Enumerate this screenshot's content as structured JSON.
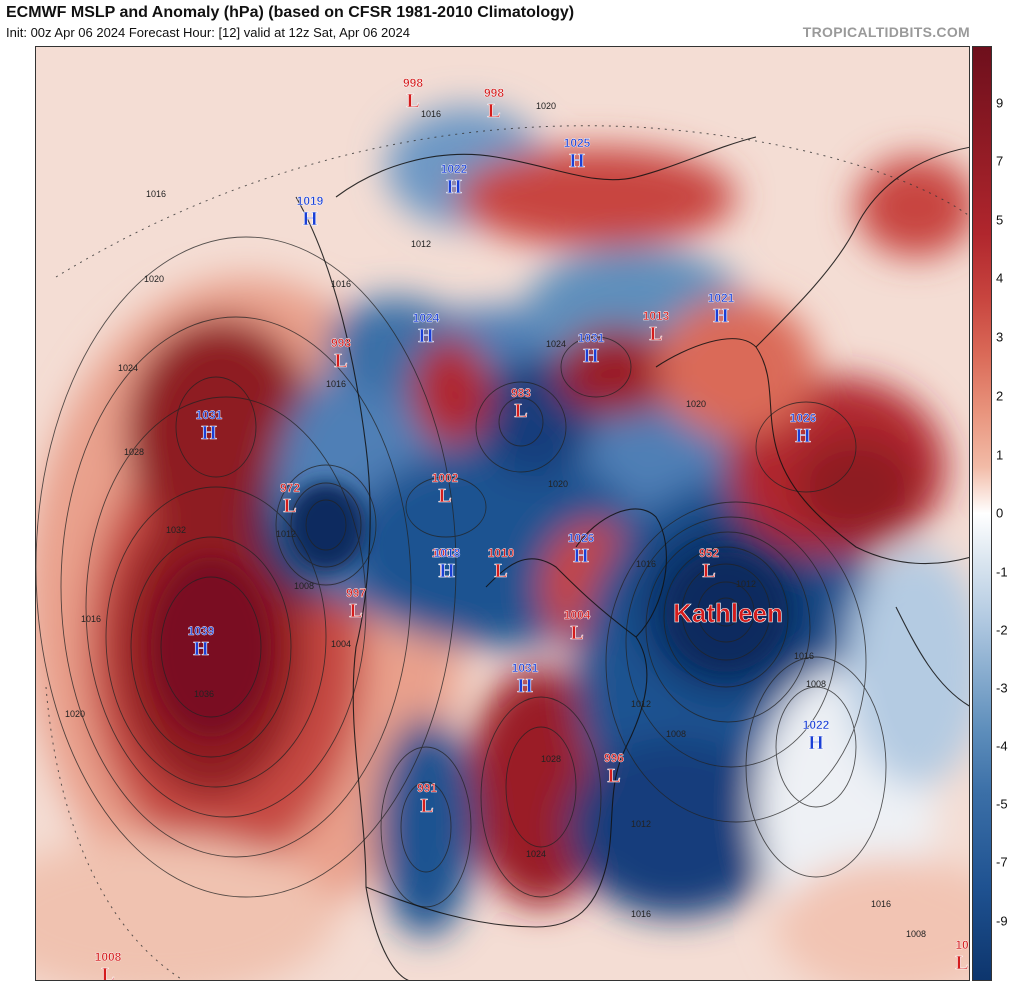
{
  "header": {
    "title": "ECMWF MSLP and Anomaly (hPa) (based on CFSR 1981-2010 Climatology)",
    "subtitle": "Init: 00z Apr 06 2024   Forecast Hour: [12]   valid at 12z Sat, Apr 06 2024",
    "brand": "TROPICALTIDBITS.COM"
  },
  "colorbar": {
    "labels": [
      "9",
      "7",
      "5",
      "4",
      "3",
      "2",
      "1",
      "0",
      "-1",
      "-2",
      "-3",
      "-4",
      "-5",
      "-7",
      "-9"
    ],
    "colors": [
      "#6e0f1c",
      "#8e1a24",
      "#b0262d",
      "#c8453f",
      "#da6a58",
      "#e8937c",
      "#f2bba7",
      "#fbe6dc",
      "#dbe6f0",
      "#b4cbe2",
      "#89adcf",
      "#5f8fbc",
      "#3b6fa7",
      "#1f5291",
      "#0d356d"
    ]
  },
  "map": {
    "pressure_centers": [
      {
        "type": "H",
        "value": "1031"
      },
      {
        "type": "H",
        "value": "1039"
      },
      {
        "type": "L",
        "value": "972"
      },
      {
        "type": "L",
        "value": "998"
      },
      {
        "type": "H",
        "value": "1019"
      },
      {
        "type": "H",
        "value": "1022"
      },
      {
        "type": "L",
        "value": "998"
      },
      {
        "type": "L",
        "value": "998"
      },
      {
        "type": "H",
        "value": "1025"
      },
      {
        "type": "H",
        "value": "1024"
      },
      {
        "type": "L",
        "value": "983"
      },
      {
        "type": "H",
        "value": "1031"
      },
      {
        "type": "L",
        "value": "1013"
      },
      {
        "type": "H",
        "value": "1021"
      },
      {
        "type": "L",
        "value": "1002"
      },
      {
        "type": "H",
        "value": "1026"
      },
      {
        "type": "L",
        "value": "1002"
      },
      {
        "type": "H",
        "value": "1018"
      },
      {
        "type": "L",
        "value": "1010"
      },
      {
        "type": "H",
        "value": "1026"
      },
      {
        "type": "L",
        "value": "997"
      },
      {
        "type": "L",
        "value": "1004"
      },
      {
        "type": "L",
        "value": "952"
      },
      {
        "type": "H",
        "value": "1031"
      },
      {
        "type": "L",
        "value": "991"
      },
      {
        "type": "L",
        "value": "996"
      },
      {
        "type": "H",
        "value": "1022"
      },
      {
        "type": "L",
        "value": "1008"
      },
      {
        "type": "L",
        "value": "10"
      }
    ],
    "storm_label": "Kathleen",
    "isobar_labels": [
      "1016",
      "1020",
      "1024",
      "1028",
      "1032",
      "1036",
      "1020",
      "1016",
      "1012",
      "1008",
      "1004",
      "1016",
      "1020",
      "1016",
      "1012",
      "1016",
      "1020",
      "1016",
      "1012",
      "1016",
      "1008",
      "1008",
      "1012",
      "1020",
      "1024",
      "1028",
      "1024",
      "1016",
      "1008",
      "1012",
      "1016"
    ],
    "colors": {
      "high_label": "#1a3fd6",
      "low_label": "#d41c1c",
      "storm_label": "#d41c1c",
      "outline": "#222222"
    }
  }
}
